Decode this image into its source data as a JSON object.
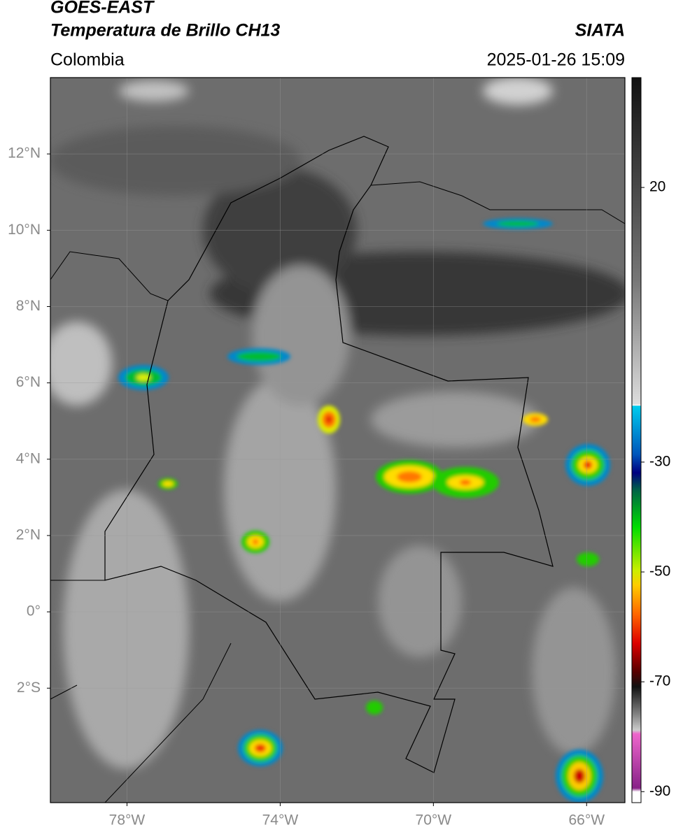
{
  "header": {
    "title": "GOES-EAST",
    "subtitle": "Temperatura de Brillo CH13",
    "source": "SIATA",
    "region": "Colombia",
    "timestamp": "2025-01-26 15:09"
  },
  "map": {
    "xlim": [
      -80,
      -65
    ],
    "ylim": [
      -5,
      14
    ],
    "xticks": [
      {
        "value": -78,
        "label": "78°W"
      },
      {
        "value": -74,
        "label": "74°W"
      },
      {
        "value": -70,
        "label": "70°W"
      },
      {
        "value": -66,
        "label": "66°W"
      }
    ],
    "yticks": [
      {
        "value": 12,
        "label": "12°N"
      },
      {
        "value": 10,
        "label": "10°N"
      },
      {
        "value": 8,
        "label": "8°N"
      },
      {
        "value": 6,
        "label": "6°N"
      },
      {
        "value": 4,
        "label": "4°N"
      },
      {
        "value": 2,
        "label": "2°N"
      },
      {
        "value": 0,
        "label": "0°"
      },
      {
        "value": -2,
        "label": "2°S"
      }
    ],
    "grid": true
  },
  "colorbar": {
    "lim": [
      -92,
      40
    ],
    "ticks": [
      20,
      -30,
      -50,
      -70,
      -90
    ]
  }
}
